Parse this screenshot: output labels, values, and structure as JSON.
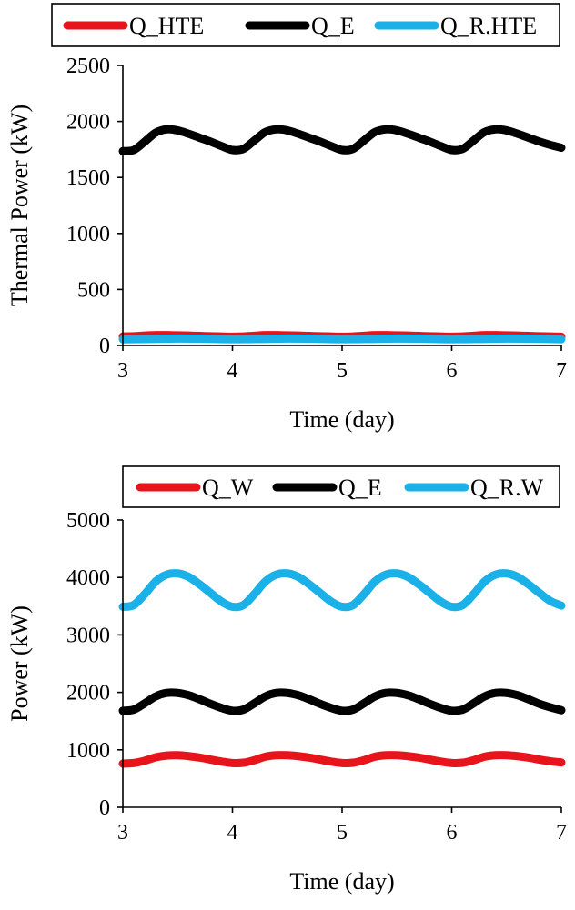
{
  "chart_data": [
    {
      "type": "line",
      "xlabel": "Time (day)",
      "ylabel": "Thermal Power (kW)",
      "xlim": [
        3,
        7
      ],
      "ylim": [
        0,
        2500
      ],
      "xticks": [
        3,
        4,
        5,
        6,
        7
      ],
      "yticks": [
        0,
        500,
        1000,
        1500,
        2000,
        2500
      ],
      "grid": false,
      "legend_position": "top",
      "series": [
        {
          "name": "Q_HTE",
          "color": "#e8141b",
          "x": [
            3.0,
            3.1,
            3.2,
            3.3,
            3.4,
            3.5,
            3.6,
            3.7,
            3.8,
            3.9,
            4.0,
            4.1,
            4.2,
            4.3,
            4.4,
            4.5,
            4.6,
            4.7,
            4.8,
            4.9,
            5.0,
            5.1,
            5.2,
            5.3,
            5.4,
            5.5,
            5.6,
            5.7,
            5.8,
            5.9,
            6.0,
            6.1,
            6.2,
            6.3,
            6.4,
            6.5,
            6.6,
            6.7,
            6.8,
            6.9,
            7.0
          ],
          "y": [
            80,
            82,
            88,
            92,
            92,
            90,
            88,
            85,
            82,
            80,
            78,
            80,
            86,
            92,
            92,
            90,
            88,
            85,
            82,
            80,
            78,
            80,
            86,
            92,
            92,
            90,
            88,
            85,
            82,
            80,
            78,
            80,
            86,
            92,
            92,
            90,
            88,
            85,
            82,
            80,
            78
          ]
        },
        {
          "name": "Q_E",
          "color": "#000000",
          "x": [
            3.0,
            3.1,
            3.2,
            3.3,
            3.4,
            3.5,
            3.6,
            3.7,
            3.8,
            3.9,
            4.0,
            4.1,
            4.2,
            4.3,
            4.4,
            4.5,
            4.6,
            4.7,
            4.8,
            4.9,
            5.0,
            5.1,
            5.2,
            5.3,
            5.4,
            5.5,
            5.6,
            5.7,
            5.8,
            5.9,
            6.0,
            6.1,
            6.2,
            6.3,
            6.4,
            6.5,
            6.6,
            6.7,
            6.8,
            6.9,
            7.0
          ],
          "y": [
            1735,
            1745,
            1820,
            1900,
            1930,
            1920,
            1890,
            1855,
            1820,
            1780,
            1745,
            1755,
            1830,
            1905,
            1930,
            1920,
            1890,
            1855,
            1820,
            1780,
            1745,
            1755,
            1830,
            1905,
            1930,
            1920,
            1890,
            1855,
            1820,
            1780,
            1745,
            1755,
            1830,
            1905,
            1930,
            1920,
            1890,
            1855,
            1820,
            1790,
            1765
          ]
        },
        {
          "name": "Q_R.HTE",
          "color": "#1ab0e8",
          "x": [
            3.0,
            3.25,
            3.5,
            3.75,
            4.0,
            4.25,
            4.5,
            4.75,
            5.0,
            5.25,
            5.5,
            5.75,
            6.0,
            6.25,
            6.5,
            6.75,
            7.0
          ],
          "y": [
            55,
            58,
            62,
            60,
            56,
            58,
            62,
            60,
            56,
            58,
            62,
            60,
            56,
            58,
            62,
            60,
            56
          ]
        }
      ]
    },
    {
      "type": "line",
      "xlabel": "Time (day)",
      "ylabel": "Power (kW)",
      "xlim": [
        3,
        7
      ],
      "ylim": [
        0,
        5000
      ],
      "xticks": [
        3,
        4,
        5,
        6,
        7
      ],
      "yticks": [
        0,
        1000,
        2000,
        3000,
        4000,
        5000
      ],
      "grid": false,
      "legend_position": "top",
      "series": [
        {
          "name": "Q_W",
          "color": "#e8141b",
          "x": [
            3.0,
            3.1,
            3.2,
            3.3,
            3.4,
            3.5,
            3.6,
            3.7,
            3.8,
            3.9,
            4.0,
            4.1,
            4.2,
            4.3,
            4.4,
            4.5,
            4.6,
            4.7,
            4.8,
            4.9,
            5.0,
            5.1,
            5.2,
            5.3,
            5.4,
            5.5,
            5.6,
            5.7,
            5.8,
            5.9,
            6.0,
            6.1,
            6.2,
            6.3,
            6.4,
            6.5,
            6.6,
            6.7,
            6.8,
            6.9,
            7.0
          ],
          "y": [
            760,
            770,
            810,
            870,
            900,
            905,
            890,
            865,
            830,
            795,
            770,
            775,
            820,
            880,
            905,
            905,
            890,
            865,
            830,
            795,
            770,
            775,
            820,
            880,
            905,
            905,
            890,
            865,
            830,
            795,
            770,
            775,
            820,
            880,
            905,
            905,
            890,
            865,
            830,
            800,
            780
          ]
        },
        {
          "name": "Q_E",
          "color": "#000000",
          "x": [
            3.0,
            3.1,
            3.2,
            3.3,
            3.4,
            3.5,
            3.6,
            3.7,
            3.8,
            3.9,
            4.0,
            4.1,
            4.2,
            4.3,
            4.4,
            4.5,
            4.6,
            4.7,
            4.8,
            4.9,
            5.0,
            5.1,
            5.2,
            5.3,
            5.4,
            5.5,
            5.6,
            5.7,
            5.8,
            5.9,
            6.0,
            6.1,
            6.2,
            6.3,
            6.4,
            6.5,
            6.6,
            6.7,
            6.8,
            6.9,
            7.0
          ],
          "y": [
            1680,
            1700,
            1810,
            1930,
            1990,
            1990,
            1950,
            1880,
            1800,
            1730,
            1680,
            1700,
            1810,
            1930,
            1990,
            1990,
            1950,
            1880,
            1800,
            1730,
            1680,
            1700,
            1810,
            1930,
            1990,
            1990,
            1950,
            1880,
            1800,
            1730,
            1680,
            1700,
            1810,
            1930,
            1990,
            1990,
            1950,
            1880,
            1800,
            1740,
            1690
          ]
        },
        {
          "name": "Q_R.W",
          "color": "#1ab0e8",
          "x": [
            3.0,
            3.1,
            3.2,
            3.3,
            3.4,
            3.5,
            3.6,
            3.7,
            3.8,
            3.9,
            4.0,
            4.1,
            4.2,
            4.3,
            4.4,
            4.5,
            4.6,
            4.7,
            4.8,
            4.9,
            5.0,
            5.1,
            5.2,
            5.3,
            5.4,
            5.5,
            5.6,
            5.7,
            5.8,
            5.9,
            6.0,
            6.1,
            6.2,
            6.3,
            6.4,
            6.5,
            6.6,
            6.7,
            6.8,
            6.9,
            7.0
          ],
          "y": [
            3490,
            3520,
            3710,
            3930,
            4050,
            4070,
            4010,
            3880,
            3730,
            3580,
            3490,
            3520,
            3710,
            3930,
            4050,
            4070,
            4010,
            3880,
            3730,
            3580,
            3490,
            3520,
            3710,
            3930,
            4050,
            4070,
            4010,
            3880,
            3730,
            3580,
            3490,
            3520,
            3710,
            3930,
            4050,
            4070,
            4010,
            3880,
            3730,
            3590,
            3510
          ]
        }
      ]
    }
  ]
}
